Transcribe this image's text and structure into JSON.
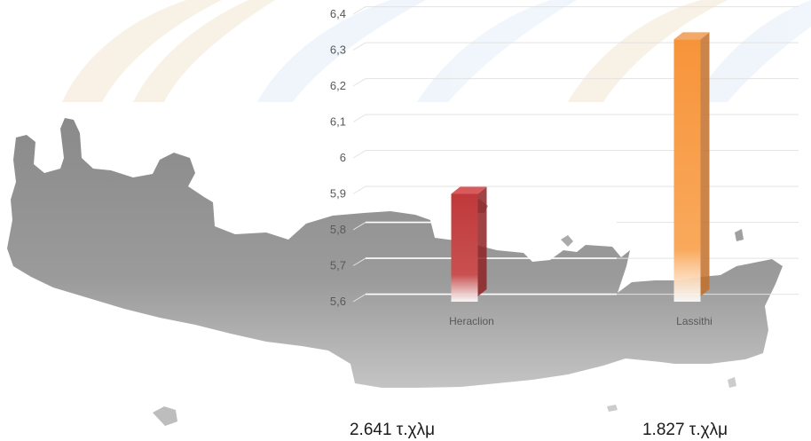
{
  "chart_data": {
    "type": "bar",
    "style": "3d-column",
    "categories": [
      "Heraclion",
      "Lassithi"
    ],
    "values": [
      5.9,
      6.33
    ],
    "colors": [
      "#c0393b",
      "#f79a3c"
    ],
    "ylim": [
      5.6,
      6.4
    ],
    "ytick_labels": [
      "5,6",
      "5,7",
      "5,8",
      "5,9",
      "6",
      "6,1",
      "6,2",
      "6,3",
      "6,4"
    ],
    "grid": true
  },
  "annotations": {
    "heraclion_area": "2.641 τ.χλμ",
    "lassithi_area": "1.827 τ.χλμ"
  },
  "background": {
    "map": "crete-island-silhouette",
    "map_color": "#8e8e8e",
    "pattern_colors": [
      "#f6eadb",
      "#e6f0f9"
    ]
  }
}
